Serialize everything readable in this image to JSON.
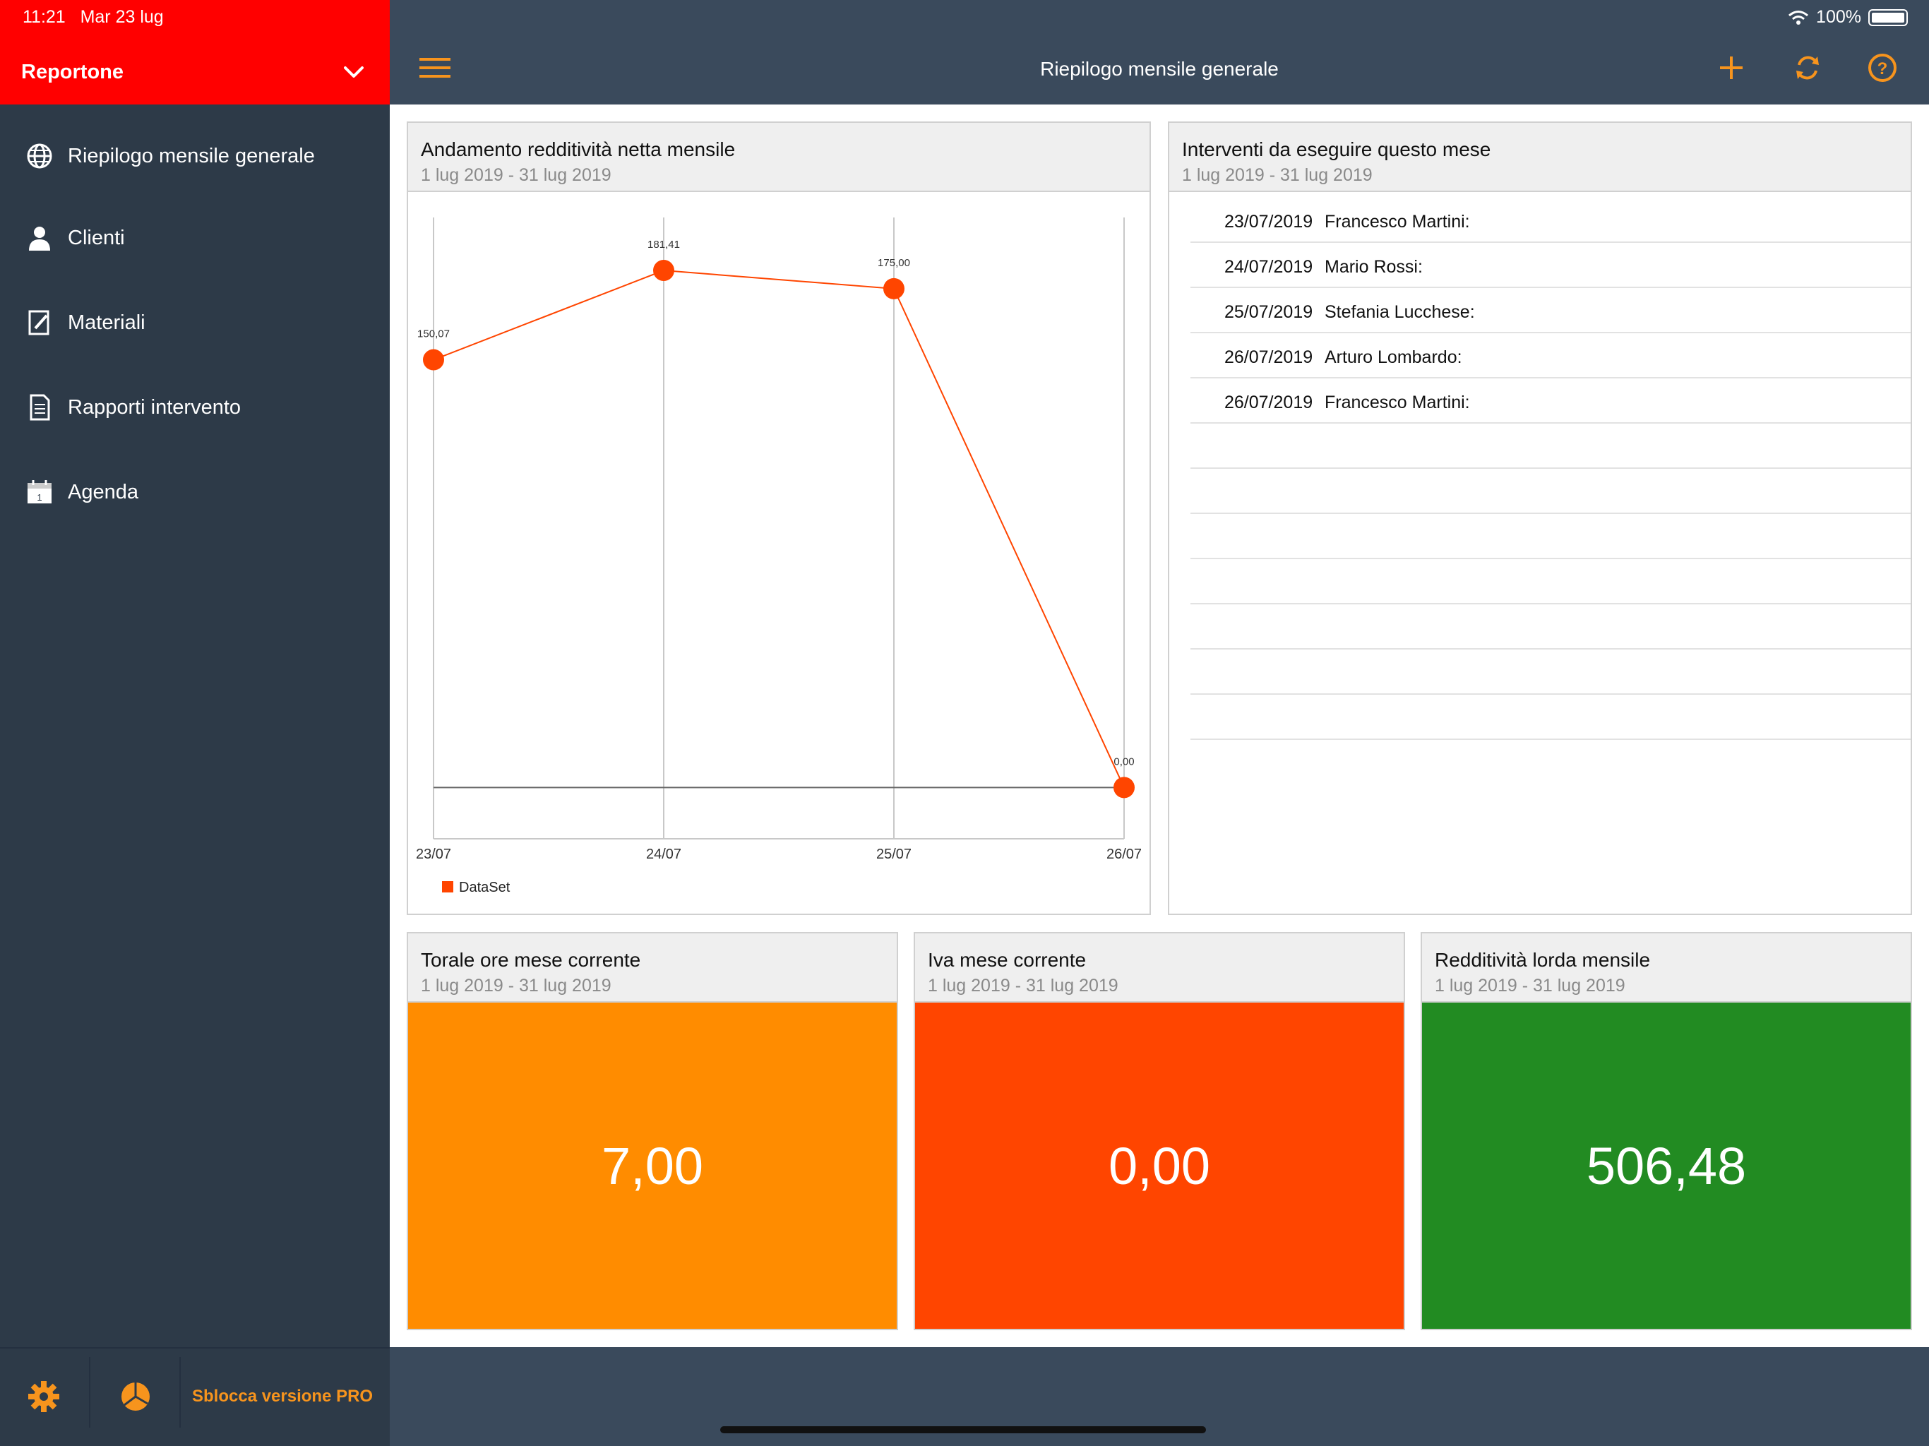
{
  "status": {
    "time": "11:21",
    "date": "Mar 23 lug",
    "battery": "100%"
  },
  "sidebar": {
    "app_title": "Reportone",
    "items": [
      {
        "label": "Riepilogo mensile generale",
        "icon": "globe-icon"
      },
      {
        "label": "Clienti",
        "icon": "person-icon"
      },
      {
        "label": "Materiali",
        "icon": "edit-document-icon"
      },
      {
        "label": "Rapporti intervento",
        "icon": "document-icon"
      },
      {
        "label": "Agenda",
        "icon": "calendar-icon"
      }
    ],
    "footer": {
      "pro_label": "Sblocca versione PRO"
    }
  },
  "header": {
    "title": "Riepilogo mensile generale"
  },
  "colors": {
    "accent": "#f7941d",
    "sidebar_head": "#ff0000",
    "line": "#ff4500",
    "orange": "#ff8c00",
    "red_orange": "#ff4500",
    "green": "#228b22"
  },
  "chart_card": {
    "title": "Andamento redditività netta mensile",
    "subtitle": "1 lug 2019 - 31 lug 2019"
  },
  "chart_data": {
    "type": "line",
    "x": [
      "23/07",
      "24/07",
      "25/07",
      "26/07"
    ],
    "series": [
      {
        "name": "DataSet",
        "values": [
          150.07,
          181.41,
          175.0,
          0.0
        ]
      }
    ],
    "point_labels": [
      "150,07",
      "181,41",
      "175,00",
      "0,00"
    ],
    "ylim": [
      -18,
      200
    ],
    "grid": true,
    "legend": "bottom-left"
  },
  "interventions_card": {
    "title": "Interventi da eseguire questo mese",
    "subtitle": "1 lug 2019 - 31 lug 2019",
    "rows": [
      {
        "date": "23/07/2019",
        "name": "Francesco Martini:"
      },
      {
        "date": "24/07/2019",
        "name": "Mario Rossi:"
      },
      {
        "date": "25/07/2019",
        "name": "Stefania Lucchese:"
      },
      {
        "date": "26/07/2019",
        "name": "Arturo Lombardo:"
      },
      {
        "date": "26/07/2019",
        "name": "Francesco Martini:"
      }
    ]
  },
  "stats": [
    {
      "title": "Torale ore mese corrente",
      "subtitle": "1 lug 2019 - 31 lug 2019",
      "value": "7,00",
      "color": "#ff8c00"
    },
    {
      "title": "Iva mese corrente",
      "subtitle": "1 lug 2019 - 31 lug 2019",
      "value": "0,00",
      "color": "#ff4500"
    },
    {
      "title": "Redditività lorda mensile",
      "subtitle": "1 lug 2019 - 31 lug 2019",
      "value": "506,48",
      "color": "#228b22"
    }
  ]
}
